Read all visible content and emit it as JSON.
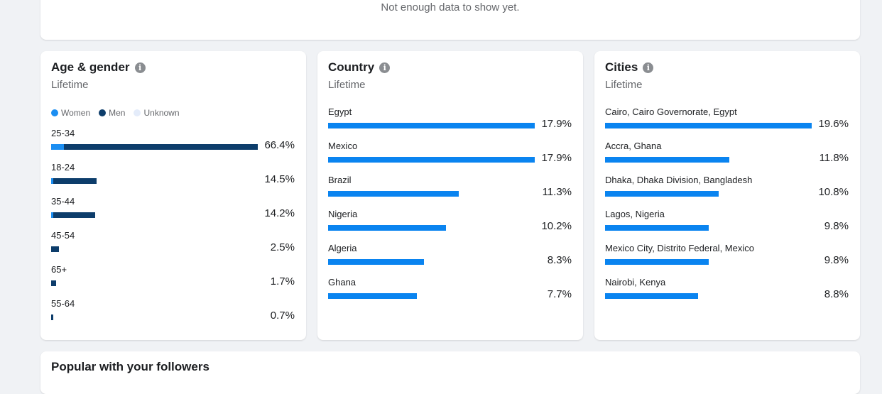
{
  "colors": {
    "women": "#1b8ef2",
    "men": "#0d3d6b",
    "unknown": "#e4ecfa",
    "bar": "#0a84f0"
  },
  "top": {
    "empty_message": "Not enough data to show yet."
  },
  "age_gender": {
    "title": "Age & gender",
    "subtitle": "Lifetime",
    "legend": {
      "women": "Women",
      "men": "Men",
      "unknown": "Unknown"
    },
    "rows": [
      {
        "label": "25-34",
        "pct": "66.4%",
        "value": 66.4,
        "women": 6.2,
        "men": 93.8
      },
      {
        "label": "18-24",
        "pct": "14.5%",
        "value": 14.5,
        "women": 5,
        "men": 95
      },
      {
        "label": "35-44",
        "pct": "14.2%",
        "value": 14.2,
        "women": 5,
        "men": 95
      },
      {
        "label": "45-54",
        "pct": "2.5%",
        "value": 2.5,
        "women": 0,
        "men": 100
      },
      {
        "label": "65+",
        "pct": "1.7%",
        "value": 1.7,
        "women": 0,
        "men": 100
      },
      {
        "label": "55-64",
        "pct": "0.7%",
        "value": 0.7,
        "women": 0,
        "men": 100
      }
    ]
  },
  "country": {
    "title": "Country",
    "subtitle": "Lifetime",
    "rows": [
      {
        "label": "Egypt",
        "pct": "17.9%",
        "value": 17.9
      },
      {
        "label": "Mexico",
        "pct": "17.9%",
        "value": 17.9
      },
      {
        "label": "Brazil",
        "pct": "11.3%",
        "value": 11.3
      },
      {
        "label": "Nigeria",
        "pct": "10.2%",
        "value": 10.2
      },
      {
        "label": "Algeria",
        "pct": "8.3%",
        "value": 8.3
      },
      {
        "label": "Ghana",
        "pct": "7.7%",
        "value": 7.7
      }
    ]
  },
  "cities": {
    "title": "Cities",
    "subtitle": "Lifetime",
    "rows": [
      {
        "label": "Cairo, Cairo Governorate, Egypt",
        "pct": "19.6%",
        "value": 19.6
      },
      {
        "label": "Accra, Ghana",
        "pct": "11.8%",
        "value": 11.8
      },
      {
        "label": "Dhaka, Dhaka Division, Bangladesh",
        "pct": "10.8%",
        "value": 10.8
      },
      {
        "label": "Lagos, Nigeria",
        "pct": "9.8%",
        "value": 9.8
      },
      {
        "label": "Mexico City, Distrito Federal, Mexico",
        "pct": "9.8%",
        "value": 9.8
      },
      {
        "label": "Nairobi, Kenya",
        "pct": "8.8%",
        "value": 8.8
      }
    ]
  },
  "popular": {
    "title": "Popular with your followers"
  }
}
